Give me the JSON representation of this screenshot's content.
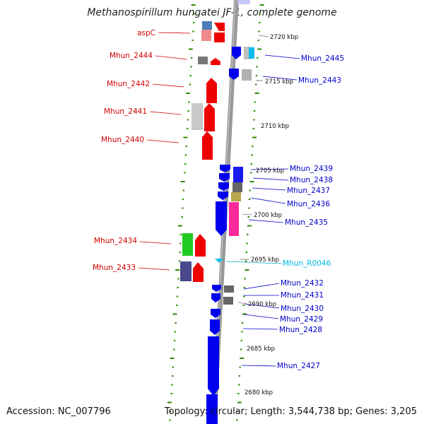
{
  "title": "Methanospirillum hungatei JF-1, complete genome",
  "footer": {
    "accession": "Accession: NC_007796",
    "stats": "Topology: circular; Length: 3,544,738 bp; Genes: 3,205"
  },
  "colors": {
    "forward_gene": "#e8000b",
    "reverse_gene": "#0000ee",
    "rna_gene": "#00c8e8",
    "tick": "#2a8a00",
    "backbone": "#999999"
  },
  "left_genes": [
    "aspC",
    "Mhun_2444",
    "Mhun_2442",
    "Mhun_2441",
    "Mhun_2440",
    "Mhun_2434",
    "Mhun_2433"
  ],
  "right_genes": [
    "Mhun_2445",
    "Mhun_2443",
    "Mhun_2439",
    "Mhun_2438",
    "Mhun_2437",
    "Mhun_2436",
    "Mhun_2435",
    "Mhun_R0046",
    "Mhun_2432",
    "Mhun_2431",
    "Mhun_2430",
    "Mhun_2429",
    "Mhun_2428",
    "Mhun_2427"
  ],
  "kbp_labels": [
    "2720 kbp",
    "2715 kbp",
    "2710 kbp",
    "2705 kbp",
    "2700 kbp",
    "2695 kbp",
    "2690 kbp",
    "2685 kbp",
    "2680 kbp"
  ]
}
